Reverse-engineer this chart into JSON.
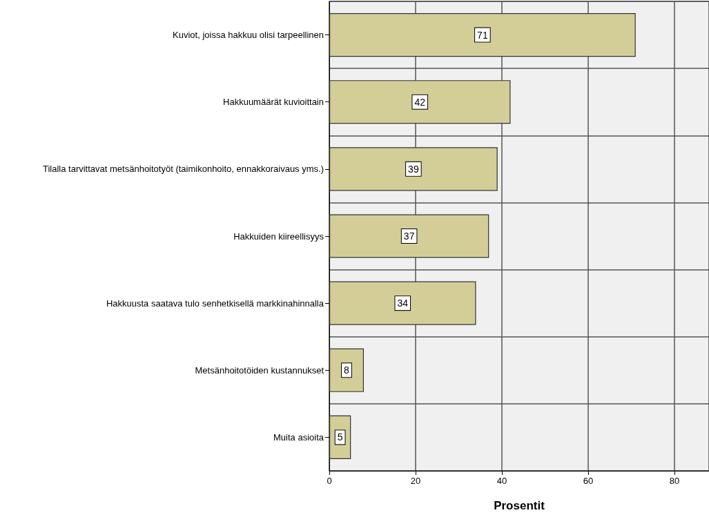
{
  "chart_data": {
    "type": "bar",
    "orientation": "horizontal",
    "xlabel": "Prosentit",
    "categories": [
      "Kuviot, joissa hakkuu olisi tarpeellinen",
      "Hakkuumäärät kuvioittain",
      "Tilalla tarvittavat metsänhoitotyöt (taimikonhoito, ennakkoraivaus yms.)",
      "Hakkuiden kiireellisyys",
      "Hakkuusta saatava tulo senhetkisellä markkinahinnalla",
      "Metsänhoitotöiden kustannukset",
      "Muita asioita"
    ],
    "values": [
      71,
      42,
      39,
      37,
      34,
      8,
      5
    ],
    "color": "#d3ce97",
    "xlim": [
      0,
      88
    ],
    "xticks": [
      0,
      20,
      40,
      60,
      80
    ],
    "grid": true,
    "data_labels": true
  }
}
